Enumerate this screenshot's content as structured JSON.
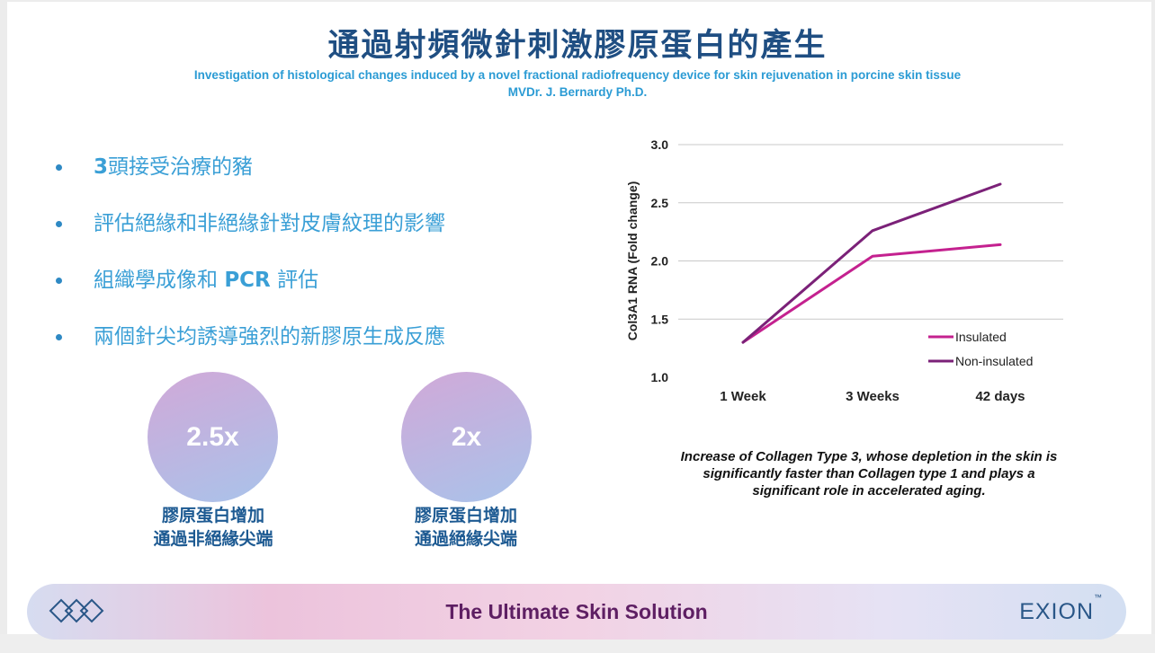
{
  "slide": {
    "title": "通過射頻微針刺激膠原蛋白的產生",
    "subtitle": "Investigation of histological changes induced by a novel fractional radiofrequency device for skin rejuvenation in porcine skin tissue",
    "author": "MVDr. J. Bernardy Ph.D.",
    "bullets": [
      {
        "strong": "3",
        "text": "頭接受治療的豬"
      },
      {
        "text": "評估絕緣和非絕緣針對皮膚紋理的影響"
      },
      {
        "text_before": "組織學成像和 ",
        "strong": "PCR",
        "text_after": " 評估"
      },
      {
        "text": "兩個針尖均誘導強烈的新膠原生成反應"
      }
    ],
    "stats": [
      {
        "value": "2.5x",
        "line1": "膠原蛋白增加",
        "line2": "通過非絕緣尖端"
      },
      {
        "value": "2x",
        "line1": "膠原蛋白增加",
        "line2": "通過絕緣尖端"
      }
    ],
    "chart_note_lines": [
      "Increase of Collagen Type 3, whose depletion in the skin is",
      "significantly faster than Collagen type 1 and plays a",
      "significant role in accelerated aging."
    ]
  },
  "chart_data": {
    "type": "line",
    "categories": [
      "1 Week",
      "3 Weeks",
      "42 days"
    ],
    "series": [
      {
        "name": "Insulated",
        "values": [
          1.3,
          2.04,
          2.14
        ],
        "color": "#c4218f"
      },
      {
        "name": "Non-insulated",
        "values": [
          1.3,
          2.26,
          2.66
        ],
        "color": "#7b2178"
      }
    ],
    "ylabel": "Col3A1 RNA (Fold change)",
    "ylim": [
      1.0,
      3.0
    ],
    "yticks": [
      "1.0",
      "1.5",
      "2.0",
      "2.5",
      "3.0"
    ],
    "grid": true,
    "legend_position": "bottom-right"
  },
  "footer": {
    "tagline": "The Ultimate Skin Solution",
    "brand": "EXION",
    "brand_mark": "™",
    "logo_icon": "btl-diamond-logo-icon"
  },
  "colors": {
    "title": "#1f4e82",
    "accent_blue": "#3a9fd6",
    "footer_text": "#5e1f63"
  }
}
